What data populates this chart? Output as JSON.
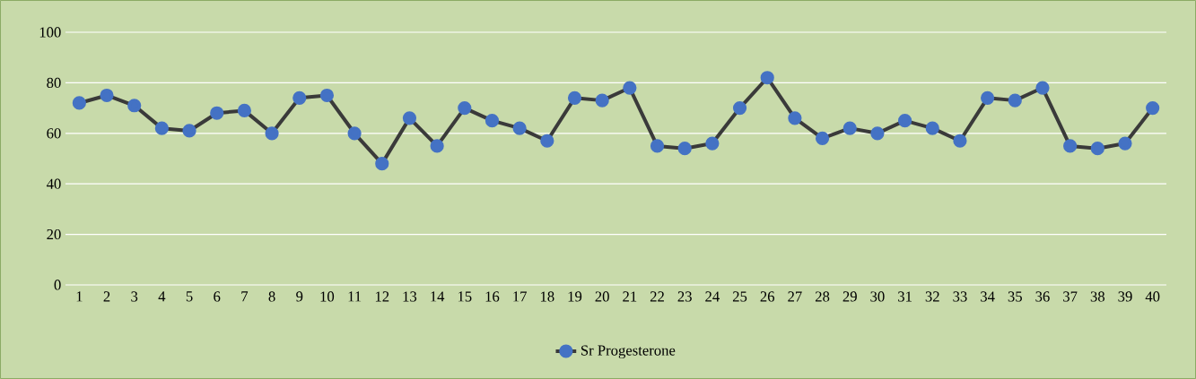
{
  "chart_data": {
    "type": "line",
    "categories": [
      "1",
      "2",
      "3",
      "4",
      "5",
      "6",
      "7",
      "8",
      "9",
      "10",
      "11",
      "12",
      "13",
      "14",
      "15",
      "16",
      "17",
      "18",
      "19",
      "20",
      "21",
      "22",
      "23",
      "24",
      "25",
      "26",
      "27",
      "28",
      "29",
      "30",
      "31",
      "32",
      "33",
      "34",
      "35",
      "36",
      "37",
      "38",
      "39",
      "40"
    ],
    "series": [
      {
        "name": "Sr Progesterone",
        "color": "#3a3a3a",
        "values": [
          72,
          75,
          71,
          62,
          61,
          68,
          69,
          60,
          74,
          75,
          60,
          48,
          66,
          55,
          70,
          65,
          62,
          57,
          74,
          73,
          78,
          55,
          54,
          56,
          70,
          82,
          66,
          58,
          62,
          60,
          65,
          62,
          57,
          74,
          73,
          78,
          55,
          54,
          56,
          70
        ]
      }
    ],
    "ylim": [
      0,
      100
    ],
    "yticks": [
      0,
      20,
      40,
      60,
      80,
      100
    ],
    "grid": "y",
    "legend": "bottom",
    "marker": "circle",
    "line_style": "solid"
  }
}
